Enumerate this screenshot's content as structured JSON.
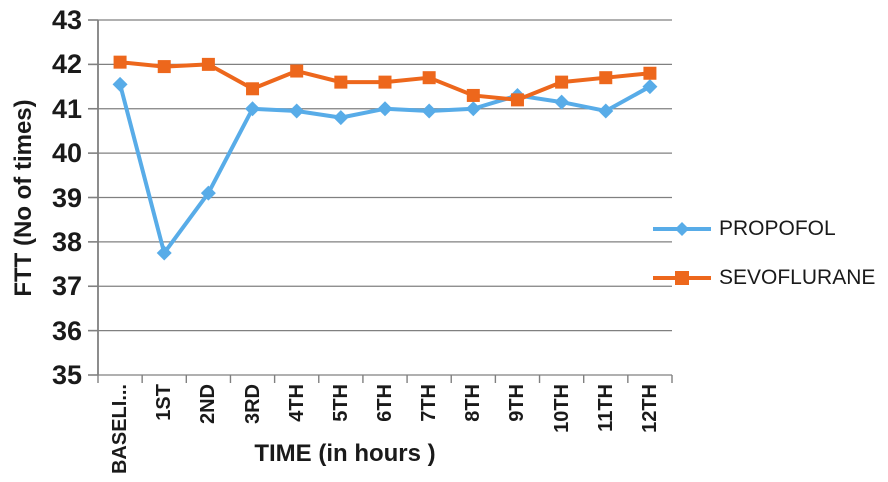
{
  "chart_data": {
    "type": "line",
    "title": "",
    "xlabel": "TIME (in hours )",
    "ylabel": "FTT (No of times)",
    "categories": [
      "BASELI...",
      "1ST",
      "2ND",
      "3RD",
      "4TH",
      "5TH",
      "6TH",
      "7TH",
      "8TH",
      "9TH",
      "10TH",
      "11TH",
      "12TH"
    ],
    "series": [
      {
        "name": "PROPOFOL",
        "color": "#58ACE8",
        "marker": "diamond",
        "values": [
          41.55,
          37.75,
          39.1,
          41.0,
          40.95,
          40.8,
          41.0,
          40.95,
          41.0,
          41.3,
          41.15,
          40.95,
          41.5
        ]
      },
      {
        "name": "SEVOFLURANE",
        "color": "#ED671C",
        "marker": "square",
        "values": [
          42.05,
          41.95,
          42.0,
          41.45,
          41.85,
          41.6,
          41.6,
          41.7,
          41.3,
          41.2,
          41.6,
          41.7,
          41.8
        ]
      }
    ],
    "ylim": [
      35,
      43
    ],
    "yticks": [
      35,
      36,
      37,
      38,
      39,
      40,
      41,
      42,
      43
    ],
    "grid": true,
    "grid_color": "#808080",
    "axis_color": "#808080",
    "text_color": "#1a1a1a",
    "legend_position": "right"
  }
}
